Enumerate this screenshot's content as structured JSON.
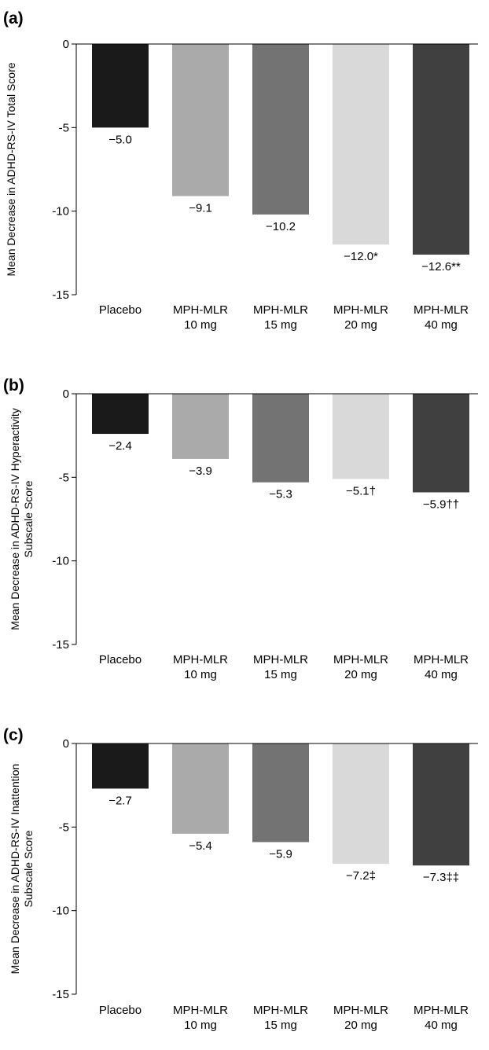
{
  "chart_data": [
    {
      "type": "bar",
      "panel": "(a)",
      "ylabel": [
        "Mean Decrease in ADHD-RS-IV Total Score"
      ],
      "categories": [
        [
          "Placebo"
        ],
        [
          "MPH-MLR",
          "10 mg"
        ],
        [
          "MPH-MLR",
          "15 mg"
        ],
        [
          "MPH-MLR",
          "20 mg"
        ],
        [
          "MPH-MLR",
          "40 mg"
        ]
      ],
      "values": [
        -5.0,
        -9.1,
        -10.2,
        -12.0,
        -12.6
      ],
      "data_labels": [
        "−5.0",
        "−9.1",
        "−10.2",
        "−12.0*",
        "−12.6**"
      ],
      "colors": [
        "#1a1a1a",
        "#aaaaaa",
        "#737373",
        "#d9d9d9",
        "#404040"
      ],
      "ylim": [
        -15,
        0
      ],
      "yticks": [
        0,
        -5,
        -10,
        -15
      ],
      "ytick_labels": [
        "0",
        "-5",
        "-10",
        "-15"
      ],
      "grid": false
    },
    {
      "type": "bar",
      "panel": "(b)",
      "ylabel": [
        "Mean Decrease in ADHD-RS-IV Hyperactivity",
        "Subscale Score"
      ],
      "categories": [
        [
          "Placebo"
        ],
        [
          "MPH-MLR",
          "10 mg"
        ],
        [
          "MPH-MLR",
          "15 mg"
        ],
        [
          "MPH-MLR",
          "20 mg"
        ],
        [
          "MPH-MLR",
          "40 mg"
        ]
      ],
      "values": [
        -2.4,
        -3.9,
        -5.3,
        -5.1,
        -5.9
      ],
      "data_labels": [
        "−2.4",
        "−3.9",
        "−5.3",
        "−5.1†",
        "−5.9††"
      ],
      "colors": [
        "#1a1a1a",
        "#aaaaaa",
        "#737373",
        "#d9d9d9",
        "#404040"
      ],
      "ylim": [
        -15,
        0
      ],
      "yticks": [
        0,
        -5,
        -10,
        -15
      ],
      "ytick_labels": [
        "0",
        "-5",
        "-10",
        "-15"
      ],
      "grid": false
    },
    {
      "type": "bar",
      "panel": "(c)",
      "ylabel": [
        "Mean Decrease in ADHD-RS-IV Inattention",
        "Subscale Score"
      ],
      "categories": [
        [
          "Placebo"
        ],
        [
          "MPH-MLR",
          "10 mg"
        ],
        [
          "MPH-MLR",
          "15 mg"
        ],
        [
          "MPH-MLR",
          "20 mg"
        ],
        [
          "MPH-MLR",
          "40 mg"
        ]
      ],
      "values": [
        -2.7,
        -5.4,
        -5.9,
        -7.2,
        -7.3
      ],
      "data_labels": [
        "−2.7",
        "−5.4",
        "−5.9",
        "−7.2‡",
        "−7.3‡‡"
      ],
      "colors": [
        "#1a1a1a",
        "#aaaaaa",
        "#737373",
        "#d9d9d9",
        "#404040"
      ],
      "ylim": [
        -15,
        0
      ],
      "yticks": [
        0,
        -5,
        -10,
        -15
      ],
      "ytick_labels": [
        "0",
        "-5",
        "-10",
        "-15"
      ],
      "grid": false
    }
  ]
}
